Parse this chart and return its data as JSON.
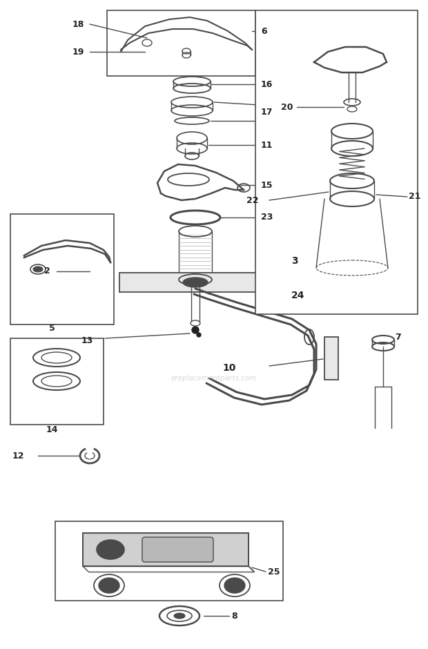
{
  "bg": "#ffffff",
  "lc": "#4a4a4a",
  "dc": "#222222",
  "gray": "#888888",
  "lgray": "#bbbbbb",
  "wm": "ereplacementparts.com",
  "wm_color": "#c8c8c8",
  "figw": 6.2,
  "figh": 9.4,
  "dpi": 100
}
